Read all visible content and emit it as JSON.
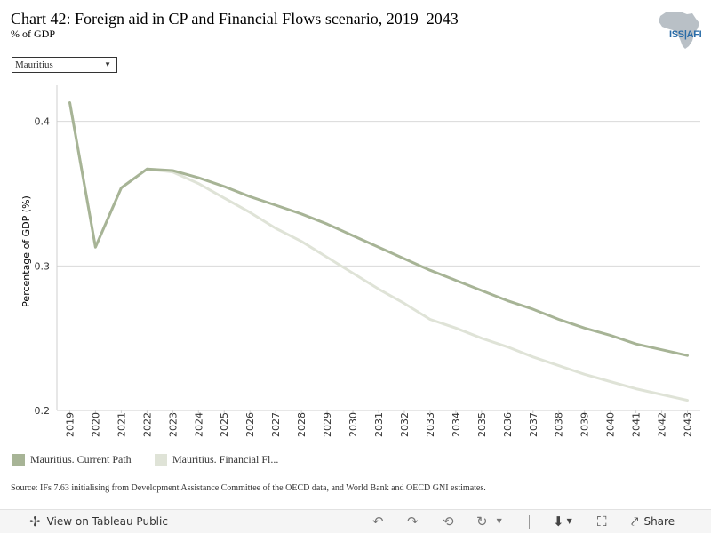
{
  "header": {
    "title": "Chart 42: Foreign aid in CP and Financial Flows scenario, 2019–2043",
    "subtitle": "% of GDP",
    "logo_text": "ISS|AFI"
  },
  "filter": {
    "selected": "Mauritius"
  },
  "chart_data": {
    "type": "line",
    "title": "Chart 42: Foreign aid in CP and Financial Flows scenario, 2019–2043",
    "subtitle": "% of GDP",
    "xlabel": "",
    "ylabel": "Percentage of GDP (%)",
    "ylim": [
      0.2,
      0.425
    ],
    "yticks": [
      0.2,
      0.3,
      0.4
    ],
    "ytick_labels": [
      "0.2",
      "0.3",
      "0.4"
    ],
    "grid": true,
    "legend": "bottom-left",
    "x": [
      2019,
      2020,
      2021,
      2022,
      2023,
      2024,
      2025,
      2026,
      2027,
      2028,
      2029,
      2030,
      2031,
      2032,
      2033,
      2034,
      2035,
      2036,
      2037,
      2038,
      2039,
      2040,
      2041,
      2042,
      2043
    ],
    "series": [
      {
        "name": "Mauritius. Current Path",
        "legend_label": "Mauritius. Current Path",
        "color": "#a7b496",
        "values": [
          0.413,
          0.313,
          0.354,
          0.367,
          0.366,
          0.361,
          0.355,
          0.348,
          0.342,
          0.336,
          0.329,
          0.321,
          0.313,
          0.305,
          0.297,
          0.29,
          0.283,
          0.276,
          0.27,
          0.263,
          0.257,
          0.252,
          0.246,
          0.242,
          0.238
        ]
      },
      {
        "name": "Mauritius. Financial Flows",
        "legend_label": "Mauritius. Financial Fl...",
        "color": "#dfe3d7",
        "values": [
          0.413,
          0.313,
          0.354,
          0.367,
          0.365,
          0.357,
          0.347,
          0.337,
          0.326,
          0.317,
          0.306,
          0.295,
          0.284,
          0.274,
          0.263,
          0.257,
          0.25,
          0.244,
          0.237,
          0.231,
          0.225,
          0.22,
          0.215,
          0.211,
          0.207
        ]
      }
    ]
  },
  "source": "Source: IFs 7.63 initialising from Development Assistance Committee of the OECD data, and World Bank and OECD GNI estimates.",
  "toolbar": {
    "view_label": "View on Tableau Public",
    "share_label": "Share"
  }
}
